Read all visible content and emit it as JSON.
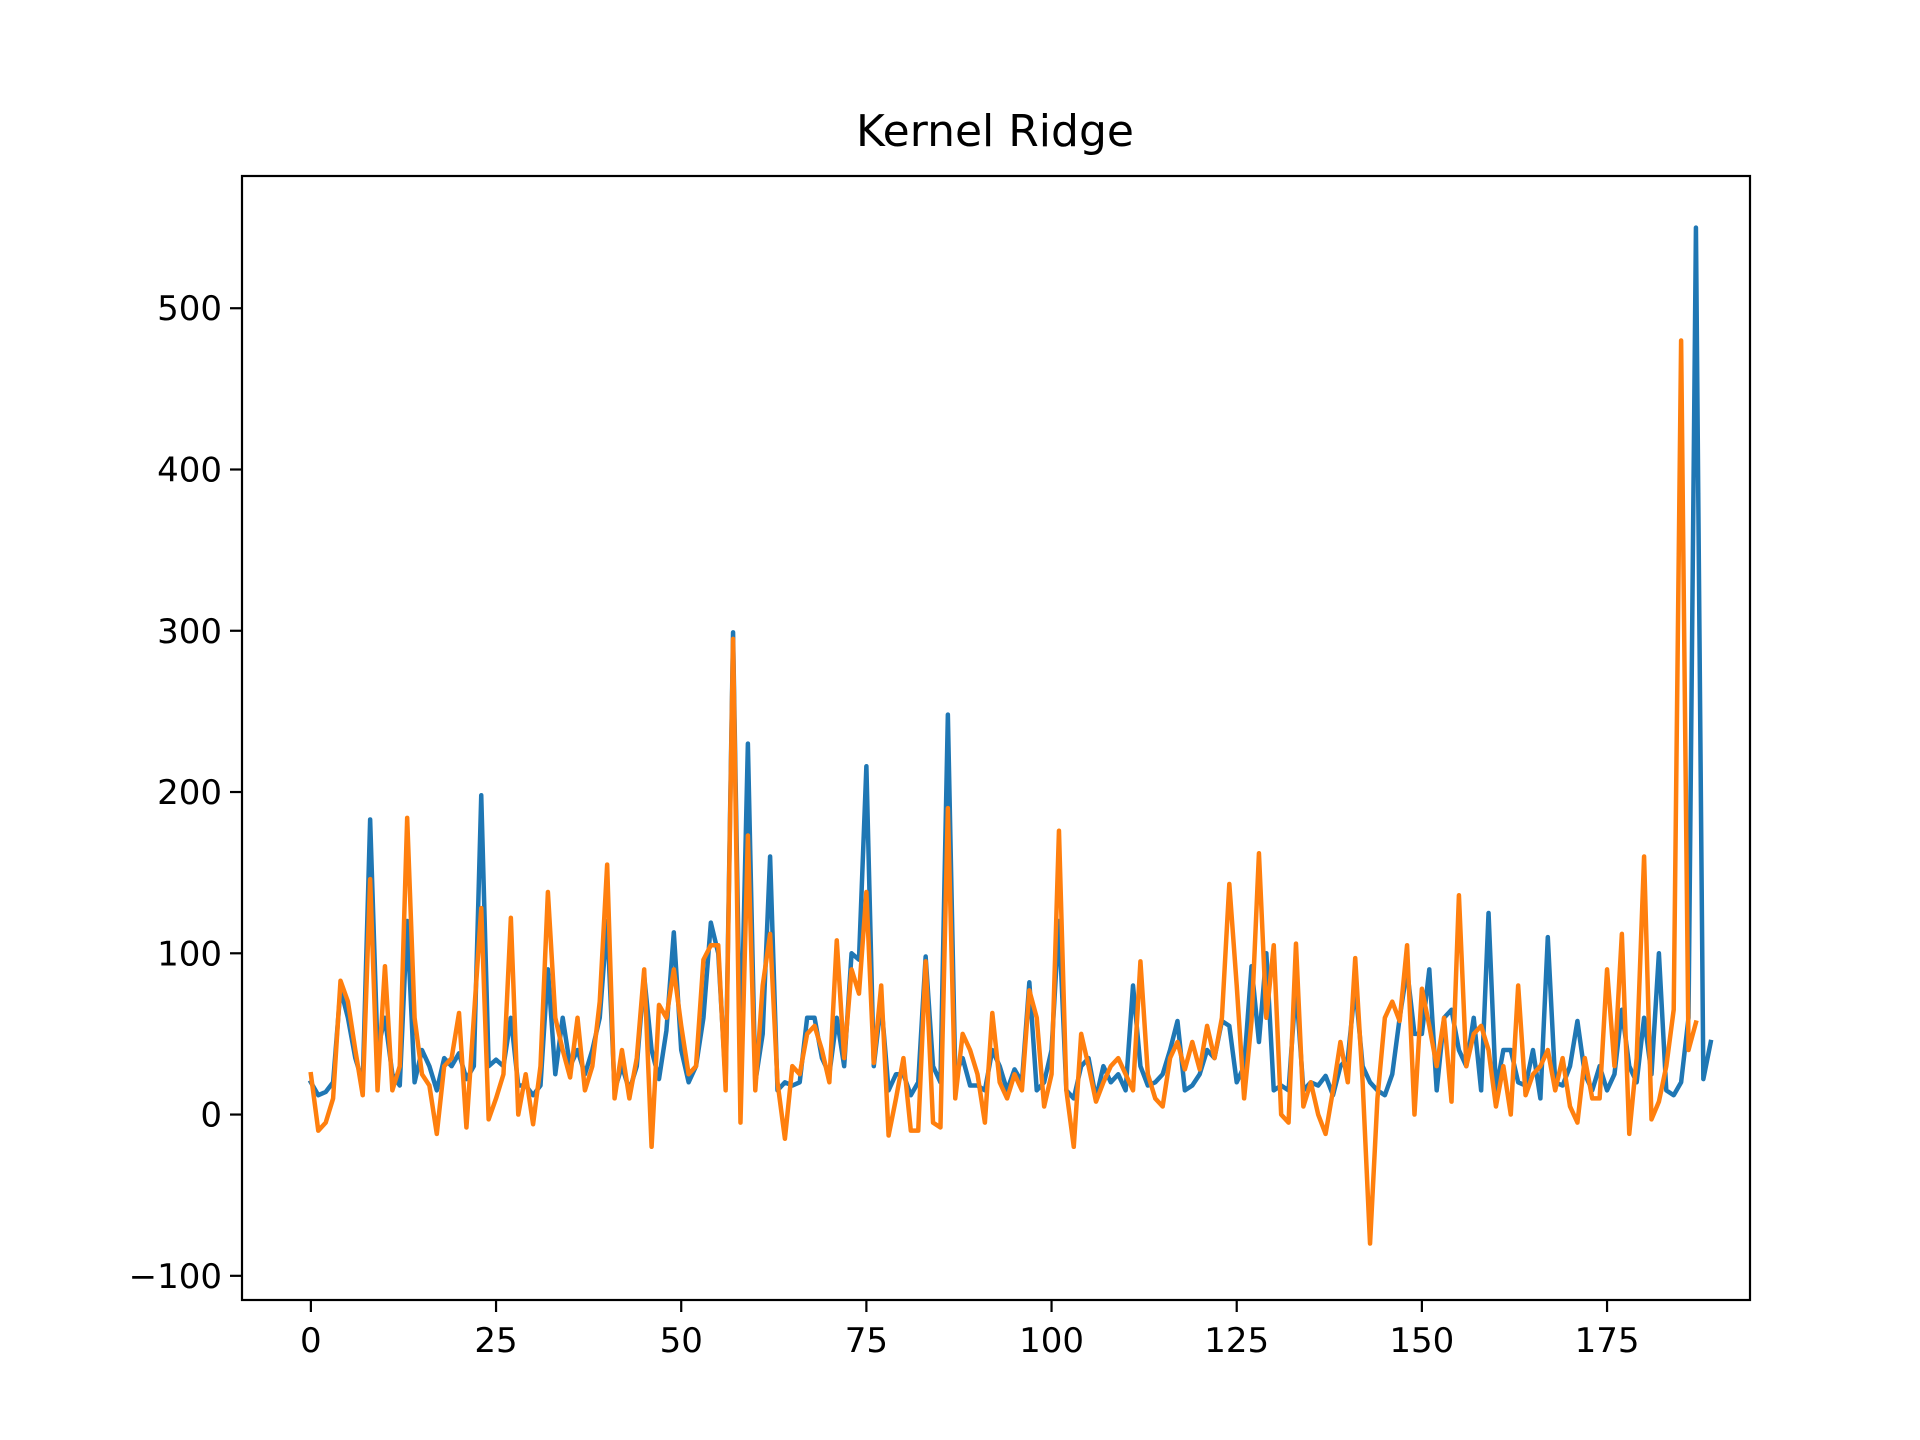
{
  "chart_data": {
    "type": "line",
    "title": "Kernel Ridge",
    "xlabel": "",
    "ylabel": "",
    "xlim": [
      -9.3,
      194.3
    ],
    "ylim": [
      -115,
      582
    ],
    "xticks": [
      0,
      25,
      50,
      75,
      100,
      125,
      150,
      175
    ],
    "yticks": [
      -100,
      0,
      100,
      200,
      300,
      400,
      500
    ],
    "grid": false,
    "series": [
      {
        "color": "#1f77b4",
        "values": [
          20,
          12,
          14,
          20,
          78,
          60,
          35,
          20,
          183,
          40,
          60,
          25,
          18,
          120,
          20,
          40,
          30,
          15,
          35,
          30,
          38,
          22,
          30,
          198,
          30,
          34,
          30,
          60,
          18,
          18,
          12,
          18,
          90,
          25,
          60,
          30,
          40,
          25,
          40,
          60,
          120,
          15,
          30,
          15,
          30,
          86,
          40,
          22,
          52,
          113,
          40,
          20,
          30,
          60,
          119,
          100,
          20,
          299,
          30,
          230,
          20,
          50,
          160,
          15,
          20,
          18,
          20,
          60,
          60,
          35,
          25,
          60,
          30,
          100,
          96,
          216,
          30,
          70,
          15,
          25,
          25,
          12,
          20,
          98,
          30,
          20,
          248,
          25,
          35,
          18,
          18,
          15,
          40,
          30,
          15,
          28,
          20,
          82,
          15,
          20,
          40,
          120,
          15,
          10,
          30,
          35,
          10,
          30,
          20,
          25,
          15,
          80,
          30,
          18,
          20,
          25,
          40,
          58,
          15,
          18,
          25,
          40,
          35,
          58,
          55,
          20,
          30,
          92,
          45,
          100,
          15,
          18,
          15,
          80,
          15,
          20,
          18,
          24,
          12,
          30,
          35,
          80,
          30,
          20,
          15,
          12,
          25,
          60,
          90,
          50,
          50,
          90,
          15,
          60,
          65,
          40,
          30,
          60,
          15,
          125,
          15,
          40,
          40,
          20,
          18,
          40,
          10,
          110,
          20,
          18,
          30,
          58,
          25,
          15,
          30,
          15,
          25,
          65,
          30,
          20,
          60,
          25,
          100,
          15,
          12,
          20,
          60,
          550,
          22,
          45
        ]
      },
      {
        "color": "#ff7f0e",
        "values": [
          25,
          -10,
          -5,
          10,
          83,
          70,
          40,
          12,
          146,
          15,
          92,
          15,
          30,
          184,
          60,
          25,
          18,
          -12,
          30,
          35,
          63,
          -8,
          60,
          128,
          -3,
          10,
          25,
          122,
          0,
          25,
          -6,
          30,
          138,
          60,
          40,
          23,
          60,
          15,
          30,
          70,
          155,
          10,
          40,
          10,
          35,
          90,
          -20,
          68,
          60,
          90,
          55,
          25,
          30,
          96,
          105,
          105,
          15,
          295,
          -5,
          173,
          15,
          80,
          112,
          20,
          -15,
          30,
          25,
          50,
          55,
          40,
          20,
          108,
          35,
          90,
          75,
          138,
          32,
          80,
          -13,
          10,
          35,
          -10,
          -10,
          95,
          -5,
          -8,
          190,
          10,
          50,
          40,
          25,
          -5,
          63,
          20,
          10,
          25,
          15,
          77,
          60,
          5,
          25,
          176,
          15,
          -20,
          50,
          30,
          8,
          20,
          30,
          35,
          25,
          15,
          95,
          25,
          10,
          5,
          35,
          45,
          28,
          45,
          28,
          55,
          35,
          60,
          143,
          80,
          10,
          58,
          162,
          60,
          105,
          0,
          -5,
          106,
          5,
          20,
          0,
          -12,
          15,
          45,
          20,
          97,
          20,
          -80,
          10,
          60,
          70,
          58,
          105,
          0,
          78,
          55,
          30,
          60,
          8,
          136,
          30,
          50,
          55,
          40,
          5,
          30,
          0,
          80,
          12,
          25,
          30,
          40,
          15,
          35,
          5,
          -5,
          35,
          10,
          10,
          90,
          30,
          112,
          -12,
          35,
          160,
          -3,
          8,
          30,
          65,
          480,
          40,
          57
        ]
      }
    ]
  }
}
